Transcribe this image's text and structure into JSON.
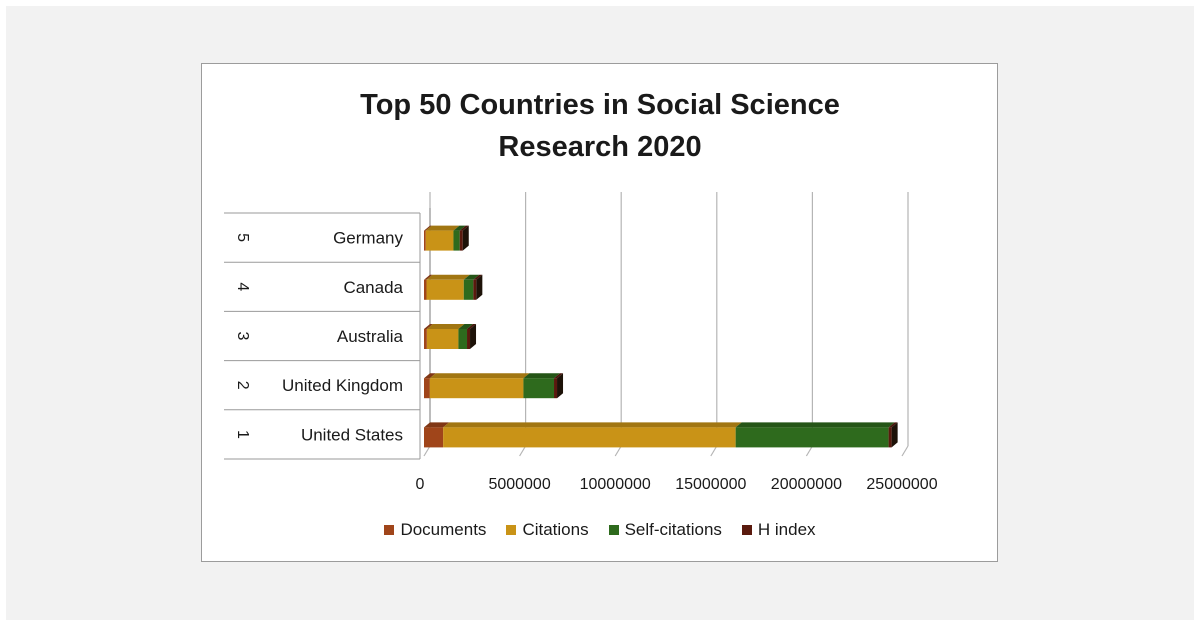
{
  "chart_data": {
    "type": "bar",
    "orientation": "horizontal",
    "stacked": true,
    "title_lines": [
      "Top 50 Countries in Social Science",
      "Research 2020"
    ],
    "categories": [
      {
        "rank": "1",
        "name": "United States"
      },
      {
        "rank": "2",
        "name": "United Kingdom"
      },
      {
        "rank": "3",
        "name": "Australia"
      },
      {
        "rank": "4",
        "name": "Canada"
      },
      {
        "rank": "5",
        "name": "Germany"
      }
    ],
    "series": [
      {
        "name": "Documents",
        "color": "#a0451a",
        "values": [
          1000000,
          300000,
          150000,
          130000,
          90000
        ]
      },
      {
        "name": "Citations",
        "color": "#c99317",
        "values": [
          15300000,
          4900000,
          1650000,
          1950000,
          1450000
        ]
      },
      {
        "name": "Self-citations",
        "color": "#2e6a1d",
        "values": [
          8000000,
          1600000,
          450000,
          500000,
          330000
        ]
      },
      {
        "name": "H index",
        "color": "#5a1a0e",
        "values": [
          1000,
          700,
          400,
          450,
          400
        ]
      }
    ],
    "x_ticks": [
      "0",
      "5000000",
      "10000000",
      "15000000",
      "20000000",
      "25000000"
    ],
    "xlim": [
      0,
      25000000
    ],
    "grid": true,
    "legend_position": "bottom"
  }
}
